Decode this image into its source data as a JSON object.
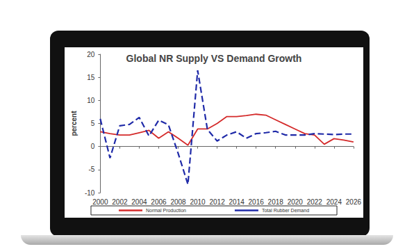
{
  "chart_data": {
    "type": "line",
    "title": "Global NR Supply VS Demand Growth",
    "y_label": "percent",
    "x": [
      2000,
      2001,
      2002,
      2003,
      2004,
      2005,
      2006,
      2007,
      2008,
      2009,
      2010,
      2011,
      2012,
      2013,
      2014,
      2015,
      2016,
      2017,
      2018,
      2019,
      2020,
      2021,
      2022,
      2023,
      2024,
      2025,
      2026
    ],
    "series": [
      {
        "name": "Normal Production",
        "color": "#d42a2a",
        "line_style": "solid",
        "values": [
          3.2,
          2.8,
          2.5,
          2.5,
          3.0,
          3.5,
          1.8,
          3.2,
          1.8,
          0.3,
          3.8,
          3.8,
          5.0,
          6.5,
          6.5,
          6.7,
          7.0,
          6.8,
          5.8,
          4.8,
          3.8,
          2.8,
          2.5,
          0.5,
          1.7,
          1.4,
          1.0
        ]
      },
      {
        "name": "Total Rubber Demand",
        "color": "#1f2aa8",
        "line_style": "dashed",
        "values": [
          6.0,
          -2.5,
          4.5,
          4.8,
          6.3,
          2.3,
          5.7,
          4.7,
          -1.5,
          -8.2,
          16.5,
          3.7,
          1.2,
          2.5,
          3.2,
          1.8,
          2.8,
          3.0,
          3.3,
          2.5,
          2.5,
          2.5,
          2.8,
          2.7,
          2.6,
          2.7,
          2.7
        ]
      }
    ],
    "xlim": [
      2000,
      2026
    ],
    "xticks": [
      2000,
      2002,
      2004,
      2006,
      2008,
      2010,
      2012,
      2014,
      2016,
      2018,
      2020,
      2022,
      2024,
      2026
    ],
    "ylim": [
      -10,
      20
    ],
    "yticks": [
      -10,
      -5,
      0,
      5,
      10,
      15,
      20
    ],
    "grid": false,
    "legend": "bottom"
  }
}
